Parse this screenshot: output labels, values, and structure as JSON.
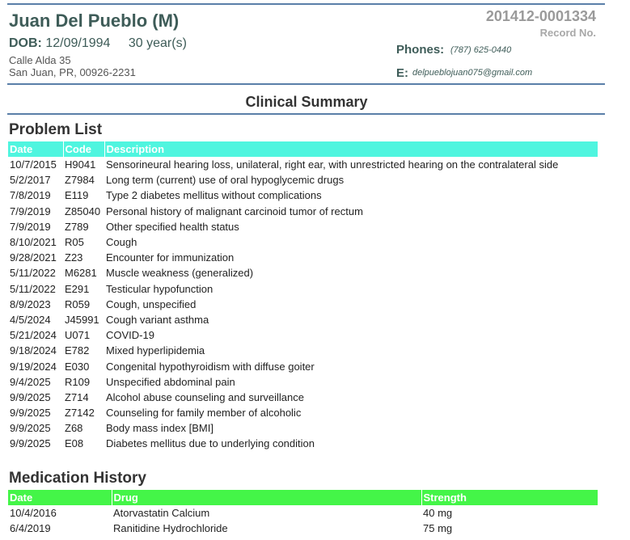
{
  "patient": {
    "name": "Juan Del Pueblo (M)",
    "dob_label": "DOB:",
    "dob": "12/09/1994",
    "age": "30 year(s)",
    "address_line1": "Calle Alda 35",
    "address_line2": "San Juan, PR, 00926-2231",
    "record_number": "201412-0001334",
    "record_label": "Record No.",
    "phones_label": "Phones:",
    "phone": "(787) 625-0440",
    "email_label": "E:",
    "email": "delpueblojuan075@gmail.com"
  },
  "summary_title": "Clinical Summary",
  "problem_list": {
    "title": "Problem List",
    "header_color": "#4ff5df",
    "columns": [
      "Date",
      "Code",
      "Description"
    ],
    "rows": [
      [
        "10/7/2015",
        "H9041",
        "Sensorineural hearing loss, unilateral, right ear, with unrestricted hearing on the contralateral side"
      ],
      [
        "5/2/2017",
        "Z7984",
        "Long term (current) use of oral hypoglycemic drugs"
      ],
      [
        "7/8/2019",
        "E119",
        "Type 2 diabetes mellitus without complications"
      ],
      [
        "7/9/2019",
        "Z85040",
        "Personal history of malignant carcinoid tumor of rectum"
      ],
      [
        "7/9/2019",
        "Z789",
        "Other specified health status"
      ],
      [
        "8/10/2021",
        "R05",
        "Cough"
      ],
      [
        "9/28/2021",
        "Z23",
        "Encounter for immunization"
      ],
      [
        "5/11/2022",
        "M6281",
        "Muscle weakness (generalized)"
      ],
      [
        "5/11/2022",
        "E291",
        "Testicular hypofunction"
      ],
      [
        "8/9/2023",
        "R059",
        "Cough, unspecified"
      ],
      [
        "4/5/2024",
        "J45991",
        "Cough variant asthma"
      ],
      [
        "5/21/2024",
        "U071",
        "COVID-19"
      ],
      [
        "9/18/2024",
        "E782",
        "Mixed hyperlipidemia"
      ],
      [
        "9/19/2024",
        "E030",
        "Congenital hypothyroidism with diffuse goiter"
      ],
      [
        "9/4/2025",
        "R109",
        "Unspecified abdominal pain"
      ],
      [
        "9/9/2025",
        "Z714",
        "Alcohol abuse counseling and surveillance"
      ],
      [
        "9/9/2025",
        "Z7142",
        "Counseling for family member of alcoholic"
      ],
      [
        "9/9/2025",
        "Z68",
        "Body mass index [BMI]"
      ],
      [
        "9/9/2025",
        "E08",
        "Diabetes mellitus due to underlying condition"
      ]
    ]
  },
  "medication_history": {
    "title": "Medication History",
    "header_color": "#44f548",
    "columns": [
      "Date",
      "Drug",
      "Strength"
    ],
    "rows": [
      [
        "10/4/2016",
        "Atorvastatin Calcium",
        "40 mg"
      ],
      [
        "6/4/2019",
        "Ranitidine Hydrochloride",
        "75 mg"
      ]
    ]
  }
}
